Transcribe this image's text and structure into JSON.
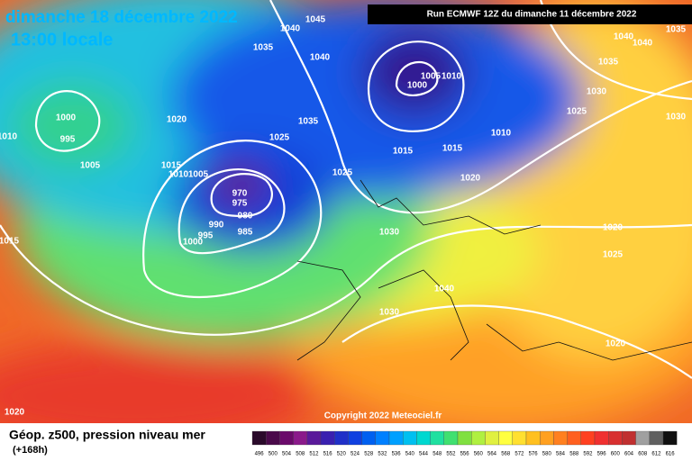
{
  "header": {
    "date": "dimanche 18 décembre 2022",
    "time": "13:00 locale",
    "run": "Run ECMWF 12Z du dimanche 11 décembre 2022"
  },
  "copyright": "Copyright 2022 Meteociel.fr",
  "legend": {
    "title": "Géop. z500, pression niveau mer",
    "lead": "(+168h)",
    "values": [
      496,
      500,
      504,
      508,
      512,
      516,
      520,
      524,
      528,
      532,
      536,
      540,
      544,
      548,
      552,
      556,
      560,
      564,
      568,
      572,
      576,
      580,
      584,
      588,
      592,
      596,
      600,
      604,
      608,
      612,
      616
    ],
    "colors": [
      "#2a0a2a",
      "#4a0a4a",
      "#6a0a6a",
      "#8a1a8a",
      "#5a1a9a",
      "#3a20b0",
      "#2030c8",
      "#1040e0",
      "#0060f0",
      "#0080ff",
      "#00a0ff",
      "#00c0f0",
      "#00d8d0",
      "#20e0a0",
      "#40e070",
      "#80e040",
      "#b0f040",
      "#e0f040",
      "#ffff40",
      "#ffe030",
      "#ffc020",
      "#ffa020",
      "#ff8020",
      "#ff6020",
      "#ff4020",
      "#f03030",
      "#d83030",
      "#c03030",
      "#a0a0a0",
      "#606060",
      "#101010"
    ]
  },
  "isobar_labels": [
    "1045",
    "1040",
    "1035",
    "1040",
    "1035",
    "1025",
    "1020",
    "1015",
    "1010",
    "1005",
    "970",
    "975",
    "980",
    "990",
    "985",
    "995",
    "1000",
    "1025",
    "1030",
    "1040",
    "1030",
    "1000",
    "995",
    "1005",
    "1010",
    "1015",
    "1020",
    "1000",
    "1005",
    "1010",
    "1015",
    "1015",
    "1010",
    "1020",
    "1025",
    "1030",
    "1035",
    "1040",
    "1040",
    "1035",
    "1030",
    "1020",
    "1025",
    "1020"
  ]
}
